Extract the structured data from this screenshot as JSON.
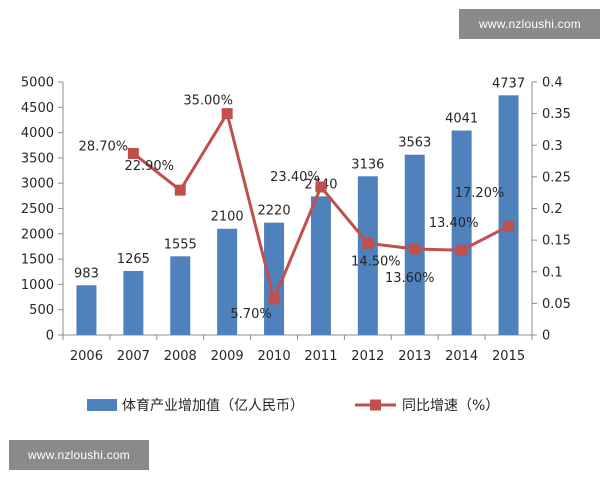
{
  "watermark": {
    "top_text": "www.nzloushi.com",
    "bottom_text": "www.nzloushi.com"
  },
  "chart_data": {
    "type": "bar+line",
    "title": "",
    "categories": [
      "2006",
      "2007",
      "2008",
      "2009",
      "2010",
      "2011",
      "2012",
      "2013",
      "2014",
      "2015"
    ],
    "series": [
      {
        "name": "体育产业增加值（亿人民币）",
        "type": "bar",
        "axis": "left",
        "color": "#4f81bd",
        "values": [
          983,
          1265,
          1555,
          2100,
          2220,
          2740,
          3136,
          3563,
          4041,
          4737
        ],
        "labels": [
          "983",
          "1265",
          "1555",
          "2100",
          "2220",
          "2740",
          "3136",
          "3563",
          "4041",
          "4737"
        ]
      },
      {
        "name": "同比增速（%）",
        "type": "line",
        "axis": "right",
        "color": "#c0504d",
        "values": [
          null,
          0.287,
          0.229,
          0.35,
          0.057,
          0.234,
          0.145,
          0.136,
          0.134,
          0.172
        ],
        "labels": [
          null,
          "28.70%",
          "22.90%",
          "35.00%",
          "5.70%",
          "23.40%",
          "14.50%",
          "13.60%",
          "13.40%",
          "17.20%"
        ]
      }
    ],
    "y_left": {
      "min": 0,
      "max": 5000,
      "ticks": [
        "0",
        "500",
        "1000",
        "1500",
        "2000",
        "2500",
        "3000",
        "3500",
        "4000",
        "4500",
        "5000"
      ]
    },
    "y_right": {
      "min": 0,
      "max": 0.4,
      "ticks": [
        "0",
        "0.05",
        "0.1",
        "0.15",
        "0.2",
        "0.25",
        "0.3",
        "0.35",
        "0.4"
      ]
    },
    "grid": false,
    "legend_position": "bottom"
  }
}
